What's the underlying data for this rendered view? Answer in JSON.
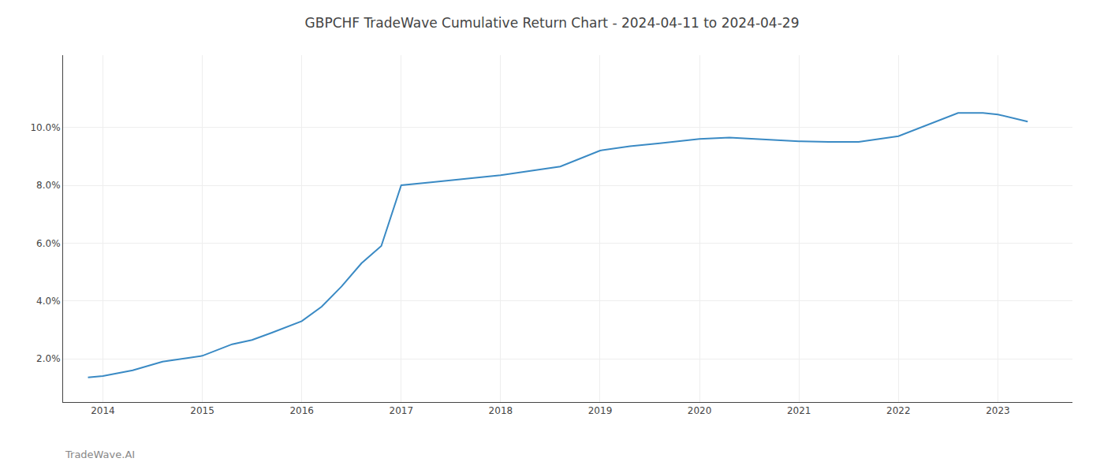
{
  "chart_data": {
    "type": "line",
    "title": "GBPCHF TradeWave Cumulative Return Chart - 2024-04-11 to 2024-04-29",
    "x": [
      2013.85,
      2014.0,
      2014.3,
      2014.6,
      2015.0,
      2015.3,
      2015.5,
      2015.7,
      2016.0,
      2016.2,
      2016.4,
      2016.6,
      2016.8,
      2017.0,
      2017.3,
      2017.6,
      2018.0,
      2018.3,
      2018.6,
      2019.0,
      2019.3,
      2019.6,
      2020.0,
      2020.3,
      2020.6,
      2021.0,
      2021.3,
      2021.6,
      2022.0,
      2022.3,
      2022.6,
      2022.85,
      2023.0,
      2023.3
    ],
    "values": [
      1.35,
      1.4,
      1.6,
      1.9,
      2.1,
      2.5,
      2.65,
      2.9,
      3.3,
      3.8,
      4.5,
      5.3,
      5.9,
      8.0,
      8.1,
      8.2,
      8.35,
      8.5,
      8.65,
      9.2,
      9.35,
      9.45,
      9.6,
      9.65,
      9.6,
      9.52,
      9.5,
      9.5,
      9.7,
      10.1,
      10.5,
      10.5,
      10.45,
      10.2
    ],
    "color": "#3a8ac4",
    "xlim": [
      2013.6,
      2023.75
    ],
    "xticks": [
      2014,
      2015,
      2016,
      2017,
      2018,
      2019,
      2020,
      2021,
      2022,
      2023
    ],
    "ylim": [
      0.5,
      12.5
    ],
    "yticks": [
      {
        "value": 2.0,
        "label": "2.0%"
      },
      {
        "value": 4.0,
        "label": "4.0%"
      },
      {
        "value": 6.0,
        "label": "6.0%"
      },
      {
        "value": 8.0,
        "label": "8.0%"
      },
      {
        "value": 10.0,
        "label": "10.0%"
      }
    ],
    "grid": true,
    "annotations": [
      {
        "text": "TradeWave.AI"
      }
    ]
  }
}
